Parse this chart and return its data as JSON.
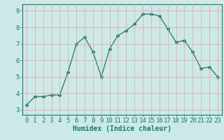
{
  "x": [
    0,
    1,
    2,
    3,
    4,
    5,
    6,
    7,
    8,
    9,
    10,
    11,
    12,
    13,
    14,
    15,
    16,
    17,
    18,
    19,
    20,
    21,
    22,
    23
  ],
  "y": [
    3.3,
    3.8,
    3.8,
    3.9,
    3.9,
    5.3,
    7.0,
    7.4,
    6.5,
    5.0,
    6.7,
    7.5,
    7.8,
    8.2,
    8.8,
    8.8,
    8.7,
    7.9,
    7.1,
    7.2,
    6.5,
    5.5,
    5.6,
    5.0
  ],
  "xlabel": "Humidex (Indice chaleur)",
  "xlim": [
    -0.5,
    23.5
  ],
  "ylim": [
    2.7,
    9.4
  ],
  "yticks": [
    3,
    4,
    5,
    6,
    7,
    8,
    9
  ],
  "xticks": [
    0,
    1,
    2,
    3,
    4,
    5,
    6,
    7,
    8,
    9,
    10,
    11,
    12,
    13,
    14,
    15,
    16,
    17,
    18,
    19,
    20,
    21,
    22,
    23
  ],
  "line_color": "#1a7a6e",
  "marker": "D",
  "marker_size": 2.0,
  "bg_color": "#cce9e8",
  "grid_color": "#e8a0a0",
  "axis_color": "#1a7a6e",
  "xlabel_fontsize": 7,
  "tick_fontsize": 6.5
}
